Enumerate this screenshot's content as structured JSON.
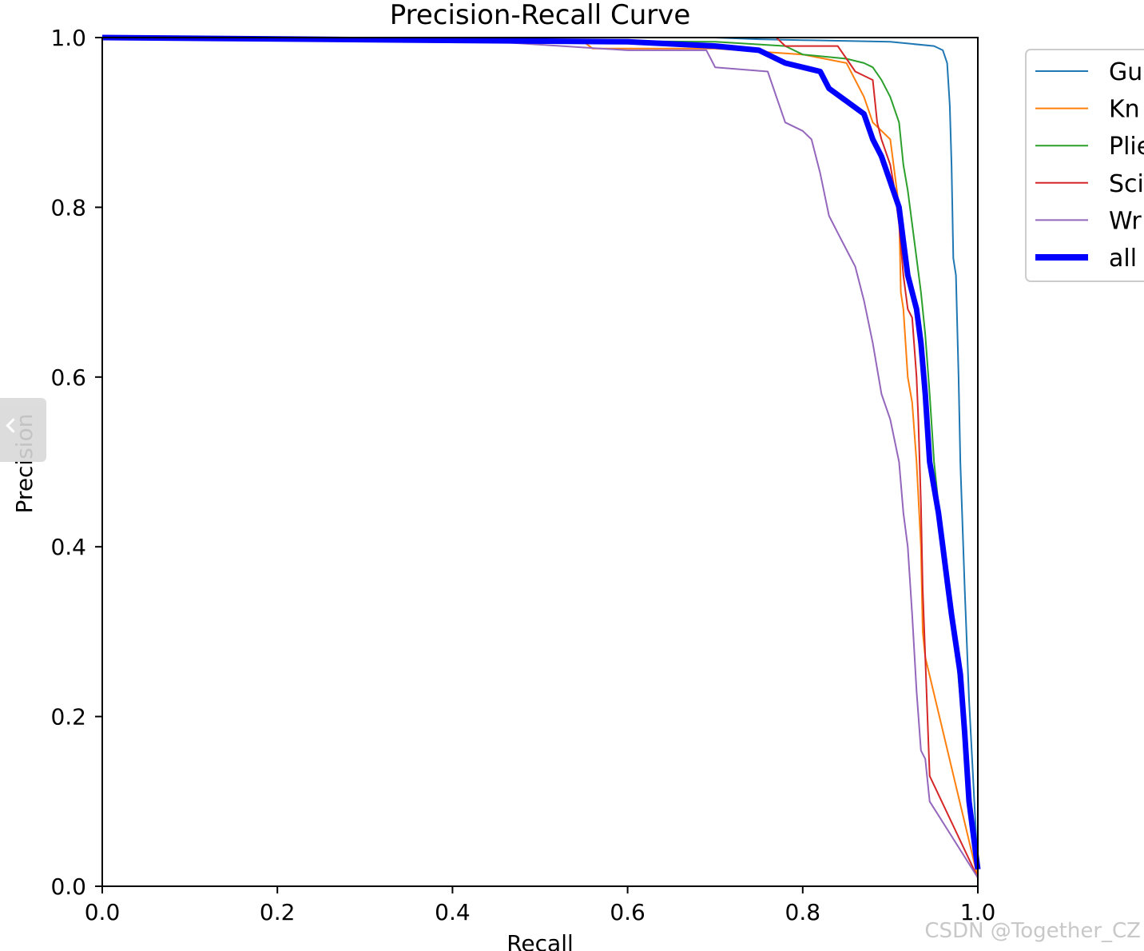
{
  "chart_data": {
    "type": "line",
    "title": "Precision-Recall Curve",
    "xlabel": "Recall",
    "ylabel": "Precision",
    "xlim": [
      0,
      1
    ],
    "ylim": [
      0,
      1
    ],
    "x_ticks": [
      "0.0",
      "0.2",
      "0.4",
      "0.6",
      "0.8",
      "1.0"
    ],
    "y_ticks": [
      "0.0",
      "0.2",
      "0.4",
      "0.6",
      "0.8",
      "1.0"
    ],
    "grid": false,
    "legend_position": "outside-upper-right",
    "series": [
      {
        "name": "Gu",
        "color": "#1f77b4",
        "points": [
          [
            0,
            1
          ],
          [
            0.7,
            1
          ],
          [
            0.75,
            0.998
          ],
          [
            0.8,
            0.997
          ],
          [
            0.9,
            0.995
          ],
          [
            0.95,
            0.99
          ],
          [
            0.96,
            0.985
          ],
          [
            0.965,
            0.97
          ],
          [
            0.968,
            0.92
          ],
          [
            0.97,
            0.85
          ],
          [
            0.972,
            0.74
          ],
          [
            0.975,
            0.72
          ],
          [
            0.978,
            0.6
          ],
          [
            0.98,
            0.5
          ],
          [
            0.985,
            0.35
          ],
          [
            0.99,
            0.22
          ],
          [
            1.0,
            0.02
          ]
        ]
      },
      {
        "name": "Kn",
        "color": "#ff7f0e",
        "points": [
          [
            0,
            1
          ],
          [
            0.55,
            0.995
          ],
          [
            0.56,
            0.987
          ],
          [
            0.7,
            0.987
          ],
          [
            0.8,
            0.98
          ],
          [
            0.85,
            0.97
          ],
          [
            0.87,
            0.93
          ],
          [
            0.88,
            0.9
          ],
          [
            0.9,
            0.88
          ],
          [
            0.905,
            0.84
          ],
          [
            0.91,
            0.8
          ],
          [
            0.912,
            0.7
          ],
          [
            0.915,
            0.68
          ],
          [
            0.92,
            0.6
          ],
          [
            0.925,
            0.57
          ],
          [
            0.93,
            0.5
          ],
          [
            0.935,
            0.4
          ],
          [
            0.937,
            0.3
          ],
          [
            0.94,
            0.27
          ],
          [
            1.0,
            0.01
          ]
        ]
      },
      {
        "name": "Plie",
        "color": "#2ca02c",
        "points": [
          [
            0,
            1
          ],
          [
            0.7,
            0.995
          ],
          [
            0.78,
            0.99
          ],
          [
            0.8,
            0.98
          ],
          [
            0.85,
            0.975
          ],
          [
            0.87,
            0.97
          ],
          [
            0.88,
            0.965
          ],
          [
            0.89,
            0.95
          ],
          [
            0.9,
            0.93
          ],
          [
            0.91,
            0.9
          ],
          [
            0.915,
            0.85
          ],
          [
            0.92,
            0.82
          ],
          [
            0.925,
            0.78
          ],
          [
            0.93,
            0.74
          ],
          [
            0.935,
            0.7
          ],
          [
            0.94,
            0.65
          ],
          [
            0.945,
            0.58
          ],
          [
            0.95,
            0.5
          ],
          [
            0.955,
            0.45
          ],
          [
            0.96,
            0.4
          ],
          [
            0.965,
            0.36
          ],
          [
            0.97,
            0.32
          ],
          [
            0.975,
            0.28
          ],
          [
            0.98,
            0.22
          ],
          [
            0.985,
            0.17
          ],
          [
            0.99,
            0.12
          ],
          [
            1.0,
            0.02
          ]
        ]
      },
      {
        "name": "Sci",
        "color": "#d62728",
        "points": [
          [
            0,
            1
          ],
          [
            0.77,
            1
          ],
          [
            0.78,
            0.99
          ],
          [
            0.84,
            0.99
          ],
          [
            0.85,
            0.975
          ],
          [
            0.86,
            0.96
          ],
          [
            0.88,
            0.95
          ],
          [
            0.885,
            0.9
          ],
          [
            0.89,
            0.88
          ],
          [
            0.9,
            0.85
          ],
          [
            0.905,
            0.82
          ],
          [
            0.91,
            0.78
          ],
          [
            0.915,
            0.72
          ],
          [
            0.92,
            0.68
          ],
          [
            0.925,
            0.67
          ],
          [
            0.93,
            0.6
          ],
          [
            0.932,
            0.55
          ],
          [
            0.935,
            0.45
          ],
          [
            0.937,
            0.35
          ],
          [
            0.94,
            0.27
          ],
          [
            0.945,
            0.13
          ],
          [
            1.0,
            0.01
          ]
        ]
      },
      {
        "name": "Wr",
        "color": "#9467bd",
        "points": [
          [
            0,
            1
          ],
          [
            0.22,
            0.997
          ],
          [
            0.45,
            0.995
          ],
          [
            0.6,
            0.985
          ],
          [
            0.69,
            0.985
          ],
          [
            0.7,
            0.965
          ],
          [
            0.76,
            0.96
          ],
          [
            0.77,
            0.93
          ],
          [
            0.78,
            0.9
          ],
          [
            0.8,
            0.89
          ],
          [
            0.81,
            0.88
          ],
          [
            0.82,
            0.84
          ],
          [
            0.83,
            0.79
          ],
          [
            0.84,
            0.77
          ],
          [
            0.85,
            0.75
          ],
          [
            0.86,
            0.73
          ],
          [
            0.87,
            0.69
          ],
          [
            0.88,
            0.64
          ],
          [
            0.89,
            0.58
          ],
          [
            0.9,
            0.55
          ],
          [
            0.91,
            0.5
          ],
          [
            0.915,
            0.44
          ],
          [
            0.92,
            0.4
          ],
          [
            0.925,
            0.32
          ],
          [
            0.93,
            0.23
          ],
          [
            0.935,
            0.16
          ],
          [
            0.94,
            0.15
          ],
          [
            0.945,
            0.1
          ],
          [
            1.0,
            0.01
          ]
        ]
      },
      {
        "name": "all",
        "color": "#0000ff",
        "thick": true,
        "points": [
          [
            0,
            1
          ],
          [
            0.6,
            0.995
          ],
          [
            0.7,
            0.99
          ],
          [
            0.75,
            0.985
          ],
          [
            0.78,
            0.97
          ],
          [
            0.82,
            0.96
          ],
          [
            0.83,
            0.94
          ],
          [
            0.85,
            0.925
          ],
          [
            0.87,
            0.91
          ],
          [
            0.88,
            0.88
          ],
          [
            0.89,
            0.86
          ],
          [
            0.9,
            0.83
          ],
          [
            0.91,
            0.8
          ],
          [
            0.915,
            0.76
          ],
          [
            0.92,
            0.72
          ],
          [
            0.925,
            0.7
          ],
          [
            0.93,
            0.68
          ],
          [
            0.935,
            0.64
          ],
          [
            0.94,
            0.58
          ],
          [
            0.945,
            0.5
          ],
          [
            0.95,
            0.47
          ],
          [
            0.955,
            0.44
          ],
          [
            0.96,
            0.4
          ],
          [
            0.965,
            0.36
          ],
          [
            0.97,
            0.32
          ],
          [
            0.98,
            0.25
          ],
          [
            0.985,
            0.18
          ],
          [
            0.99,
            0.1
          ],
          [
            1.0,
            0.02
          ]
        ]
      }
    ]
  },
  "watermark": "CSDN @Together_CZ"
}
